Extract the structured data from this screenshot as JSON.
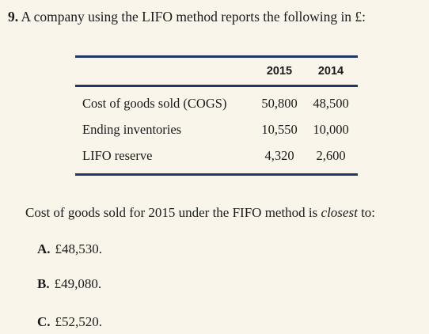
{
  "question": {
    "number": "9.",
    "text": "A company using the LIFO method reports the following in £:"
  },
  "table": {
    "headers": [
      "",
      "2015",
      "2014"
    ],
    "rows": [
      {
        "label": "Cost of goods sold (COGS)",
        "y2015": "50,800",
        "y2014": "48,500"
      },
      {
        "label": "Ending inventories",
        "y2015": "10,550",
        "y2014": "10,000"
      },
      {
        "label": "LIFO reserve",
        "y2015": "4,320",
        "y2014": "2,600"
      }
    ]
  },
  "prompt": {
    "before": "Cost of goods sold for 2015 under the FIFO method is ",
    "emphasis": "closest",
    "after": " to:"
  },
  "choices": [
    {
      "letter": "A.",
      "text": "£48,530."
    },
    {
      "letter": "B.",
      "text": "£49,080."
    },
    {
      "letter": "C.",
      "text": "£52,520."
    }
  ]
}
